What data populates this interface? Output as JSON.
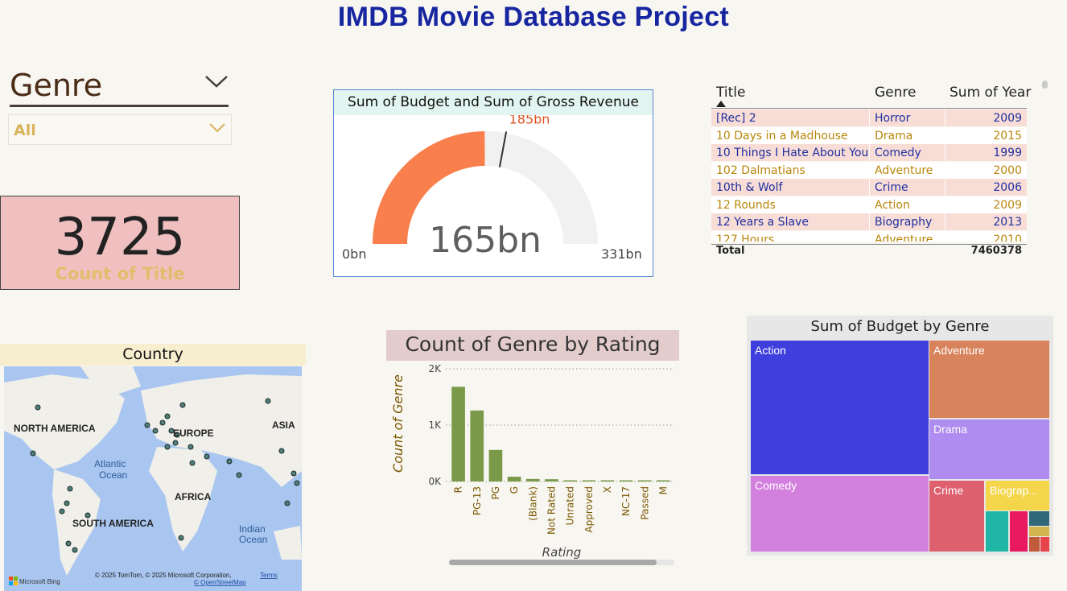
{
  "page": {
    "title": "IMDB Movie Database Project"
  },
  "slicer": {
    "title": "Genre",
    "value": "All",
    "chevron_icon": "chevron-down-icon"
  },
  "card": {
    "value": "3725",
    "label": "Count of Title"
  },
  "gauge": {
    "title": "Sum of Budget and Sum of Gross Revenue",
    "value_label": "165bn",
    "target_label": "185bn",
    "min_label": "0bn",
    "max_label": "331bn",
    "value": 165,
    "target": 185,
    "min": 0,
    "max": 331,
    "fill_color": "#f97f4c",
    "track_color": "#f1f1f1",
    "target_color": "#e0531f"
  },
  "table": {
    "headers": [
      "Title",
      "Genre",
      "Sum of Year"
    ],
    "sort_icon": "sort-ascending-icon",
    "rows": [
      {
        "title": "[Rec] 2",
        "genre": "Horror",
        "year": "2009"
      },
      {
        "title": "10 Days in a Madhouse",
        "genre": "Drama",
        "year": "2015"
      },
      {
        "title": "10 Things I Hate About You",
        "genre": "Comedy",
        "year": "1999"
      },
      {
        "title": "102 Dalmatians",
        "genre": "Adventure",
        "year": "2000"
      },
      {
        "title": "10th & Wolf",
        "genre": "Crime",
        "year": "2006"
      },
      {
        "title": "12 Rounds",
        "genre": "Action",
        "year": "2009"
      },
      {
        "title": "12 Years a Slave",
        "genre": "Biography",
        "year": "2013"
      },
      {
        "title": "127 Hours",
        "genre": "Adventure",
        "year": "2010"
      }
    ],
    "total_label": "Total",
    "total_value": "7460378"
  },
  "map": {
    "title": "Country",
    "labels": {
      "north_america": "NORTH AMERICA",
      "europe": "EUROPE",
      "asia": "ASIA",
      "atlantic1": "Atlantic",
      "atlantic2": "Ocean",
      "africa": "AFRICA",
      "south_america": "SOUTH AMERICA",
      "indian1": "Indian",
      "indian2": "Ocean"
    },
    "attribution": "© 2025 TomTom, © 2025 Microsoft Corporation,",
    "terms": "Terms",
    "osm": "© OpenStreetMap",
    "brand": "Microsoft Bing",
    "water_color": "#a9c6f0",
    "land_color": "#f1efe9"
  },
  "chart_data": [
    {
      "type": "bar",
      "title": "Count of Genre by Rating",
      "xlabel": "Rating",
      "ylabel": "Count of Genre",
      "categories": [
        "R",
        "PG-13",
        "PG",
        "G",
        "(Blank)",
        "Not Rated",
        "Unrated",
        "Approved",
        "X",
        "NC-17",
        "Passed",
        "M"
      ],
      "values": [
        1680,
        1260,
        560,
        85,
        45,
        40,
        20,
        10,
        8,
        8,
        5,
        4
      ],
      "ylim": [
        0,
        2000
      ],
      "yticks": [
        {
          "v": 0,
          "label": "0K"
        },
        {
          "v": 1000,
          "label": "1K"
        },
        {
          "v": 2000,
          "label": "2K"
        }
      ],
      "color": "#7a9a4a"
    },
    {
      "type": "treemap",
      "title": "Sum of Budget by Genre",
      "items": [
        {
          "name": "Action",
          "label": "Action",
          "color": "#3e3fdc"
        },
        {
          "name": "Comedy",
          "label": "Comedy",
          "color": "#d37fde"
        },
        {
          "name": "Adventure",
          "label": "Adventure",
          "color": "#d8835b"
        },
        {
          "name": "Drama",
          "label": "Drama",
          "color": "#ae8cf0"
        },
        {
          "name": "Crime",
          "label": "Crime",
          "color": "#de606e"
        },
        {
          "name": "Biography",
          "label": "Biograp...",
          "color": "#f5d64b"
        },
        {
          "name": "other-1",
          "label": "",
          "color": "#1fb6a6"
        },
        {
          "name": "other-2",
          "label": "",
          "color": "#e8195f"
        },
        {
          "name": "other-3",
          "label": "",
          "color": "#2f6878"
        },
        {
          "name": "other-4",
          "label": "",
          "color": "#d2b650"
        },
        {
          "name": "other-5",
          "label": "",
          "color": "#c05a3a"
        },
        {
          "name": "other-6",
          "label": "",
          "color": "#e7434a"
        }
      ]
    }
  ]
}
